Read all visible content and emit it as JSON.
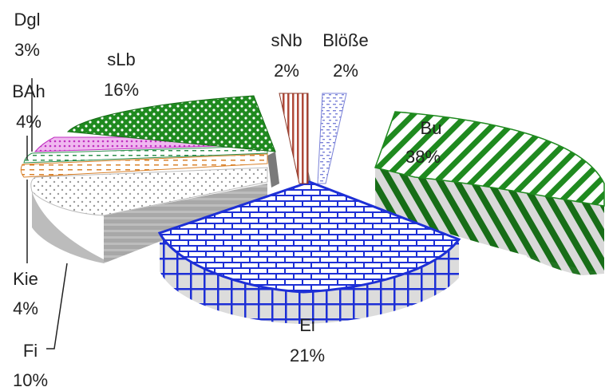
{
  "chart_data": {
    "type": "pie",
    "title": "",
    "legend": "none",
    "slices": [
      {
        "label": "Bu",
        "value": 38,
        "display": "38%",
        "color": "#1f8a1f",
        "pattern": "diagonal-stripes"
      },
      {
        "label": "Ei",
        "value": 21,
        "display": "21%",
        "color": "#1d2fd6",
        "pattern": "brick"
      },
      {
        "label": "Fi",
        "value": 10,
        "display": "10%",
        "color": "#9a9a9a",
        "pattern": "dots"
      },
      {
        "label": "Kie",
        "value": 4,
        "display": "4%",
        "color": "#d9822b",
        "pattern": "dashes"
      },
      {
        "label": "BAh",
        "value": 4,
        "display": "4%",
        "color": "#2f8f4f",
        "pattern": "dashes"
      },
      {
        "label": "Dgl",
        "value": 3,
        "display": "3%",
        "color": "#d23fd2",
        "pattern": "dots"
      },
      {
        "label": "sLb",
        "value": 16,
        "display": "16%",
        "color": "#1f8a1f",
        "pattern": "dots"
      },
      {
        "label": "sNb",
        "value": 2,
        "display": "2%",
        "color": "#b04a3a",
        "pattern": "vertical-stripes"
      },
      {
        "label": "Blöße",
        "value": 2,
        "display": "2%",
        "color": "#7a82d8",
        "pattern": "dashes"
      }
    ]
  }
}
